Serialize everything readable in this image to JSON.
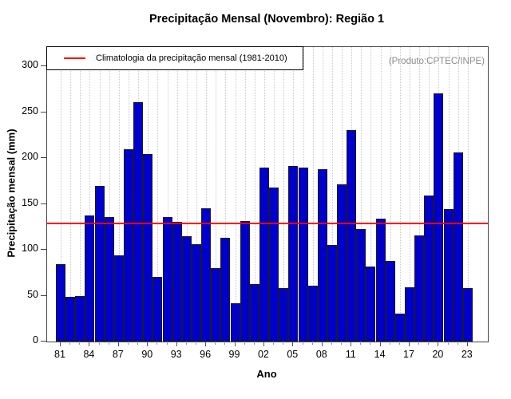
{
  "title": "Precipitação Mensal (Novembro): Região 1",
  "legend": {
    "label": "Climatologia da precipitação mensal (1981-2010)",
    "line_color": "#ff0000"
  },
  "annotation": "(Produto:CPTEC/INPE)",
  "chart_data": {
    "type": "bar",
    "title": "Precipitação Mensal (Novembro): Região 1",
    "xlabel": "Ano",
    "ylabel": "Precipitação mensal (mm)",
    "ylim": [
      0,
      320
    ],
    "yticks": [
      0,
      50,
      100,
      150,
      200,
      250,
      300
    ],
    "grid": "vertical-dotted-per-year",
    "legend_position": "top-left",
    "bar_color": "#0000cd",
    "bar_border_color": "#1c1c1c",
    "climatology_line": {
      "value": 128,
      "color": "#ff0000",
      "label": "Climatologia da precipitação mensal (1981-2010)"
    },
    "categories": [
      "81",
      "82",
      "83",
      "84",
      "85",
      "86",
      "87",
      "88",
      "89",
      "90",
      "91",
      "92",
      "93",
      "94",
      "95",
      "96",
      "97",
      "98",
      "99",
      "00",
      "01",
      "02",
      "03",
      "04",
      "05",
      "06",
      "07",
      "08",
      "09",
      "10",
      "11",
      "12",
      "13",
      "14",
      "15",
      "16",
      "17",
      "18",
      "19",
      "20",
      "21",
      "22",
      "23"
    ],
    "values": [
      84,
      49,
      50,
      137,
      170,
      136,
      94,
      210,
      261,
      204,
      70,
      136,
      130,
      115,
      106,
      145,
      80,
      113,
      42,
      131,
      63,
      190,
      168,
      58,
      191,
      190,
      61,
      188,
      105,
      171,
      230,
      123,
      82,
      134,
      88,
      30,
      59,
      116,
      159,
      270,
      144,
      206,
      58
    ],
    "xtick_labels": [
      "81",
      "84",
      "87",
      "90",
      "93",
      "96",
      "99",
      "02",
      "05",
      "08",
      "11",
      "14",
      "17",
      "20",
      "23"
    ]
  }
}
